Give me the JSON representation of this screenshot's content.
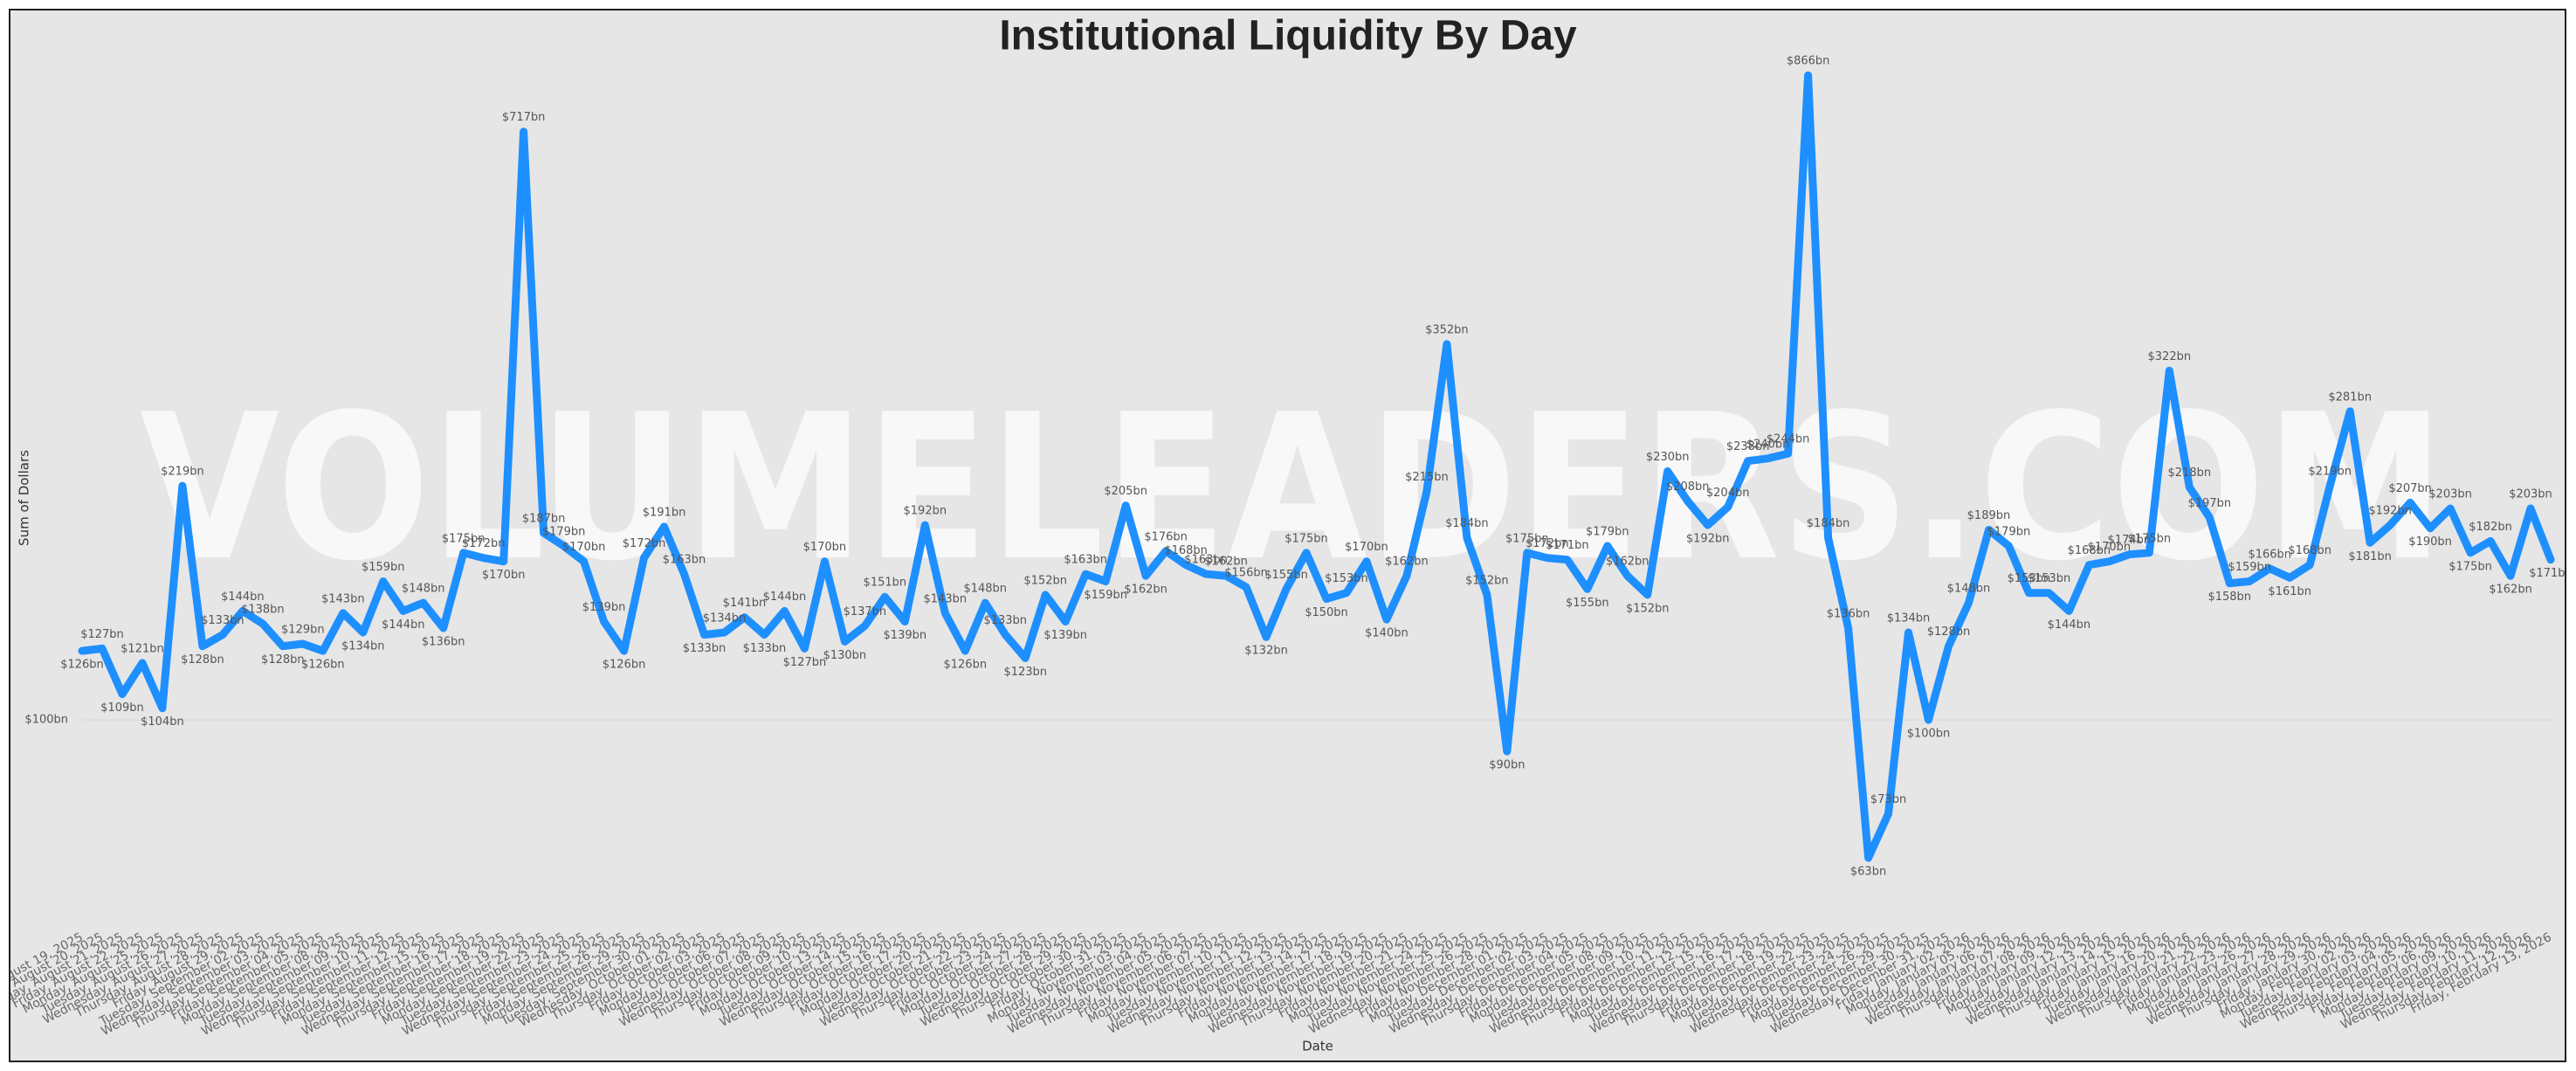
{
  "chart_data": {
    "type": "line",
    "title": "Institutional Liquidity By Day",
    "watermark": "VOLUMELEADERS.COM",
    "x_label": "Date",
    "y_label": "Sum of Dollars",
    "log_scale": true,
    "color": "#1e8fff",
    "ylim": [
      50,
      900
    ],
    "yticks": [
      {
        "value": 100,
        "label": "$100bn"
      }
    ],
    "grid": true,
    "categories": [
      "Tuesday, August 19, 2025",
      "Wednesday, August 20, 2025",
      "Thursday, August 21, 2025",
      "Friday, August 22, 2025",
      "Monday, August 25, 2025",
      "Tuesday, August 26, 2025",
      "Wednesday, August 27, 2025",
      "Thursday, August 28, 2025",
      "Friday, August 29, 2025",
      "Tuesday, September 02, 2025",
      "Wednesday, September 03, 2025",
      "Thursday, September 04, 2025",
      "Friday, September 05, 2025",
      "Monday, September 08, 2025",
      "Tuesday, September 09, 2025",
      "Wednesday, September 10, 2025",
      "Thursday, September 11, 2025",
      "Friday, September 12, 2025",
      "Monday, September 15, 2025",
      "Tuesday, September 16, 2025",
      "Wednesday, September 17, 2025",
      "Thursday, September 18, 2025",
      "Friday, September 19, 2025",
      "Monday, September 22, 2025",
      "Tuesday, September 23, 2025",
      "Wednesday, September 24, 2025",
      "Thursday, September 25, 2025",
      "Friday, September 26, 2025",
      "Monday, September 29, 2025",
      "Tuesday, September 30, 2025",
      "Wednesday, October 01, 2025",
      "Thursday, October 02, 2025",
      "Friday, October 03, 2025",
      "Monday, October 06, 2025",
      "Tuesday, October 07, 2025",
      "Wednesday, October 08, 2025",
      "Thursday, October 09, 2025",
      "Friday, October 10, 2025",
      "Monday, October 13, 2025",
      "Tuesday, October 14, 2025",
      "Wednesday, October 15, 2025",
      "Thursday, October 16, 2025",
      "Friday, October 17, 2025",
      "Monday, October 20, 2025",
      "Tuesday, October 21, 2025",
      "Wednesday, October 22, 2025",
      "Thursday, October 23, 2025",
      "Friday, October 24, 2025",
      "Monday, October 27, 2025",
      "Tuesday, October 28, 2025",
      "Wednesday, October 29, 2025",
      "Thursday, October 30, 2025",
      "Friday, October 31, 2025",
      "Monday, November 03, 2025",
      "Tuesday, November 04, 2025",
      "Wednesday, November 05, 2025",
      "Thursday, November 06, 2025",
      "Friday, November 07, 2025",
      "Monday, November 10, 2025",
      "Tuesday, November 11, 2025",
      "Wednesday, November 12, 2025",
      "Thursday, November 13, 2025",
      "Friday, November 14, 2025",
      "Monday, November 17, 2025",
      "Tuesday, November 18, 2025",
      "Wednesday, November 19, 2025",
      "Thursday, November 20, 2025",
      "Friday, November 21, 2025",
      "Monday, November 24, 2025",
      "Tuesday, November 25, 2025",
      "Wednesday, November 26, 2025",
      "Friday, November 28, 2025",
      "Monday, December 01, 2025",
      "Tuesday, December 02, 2025",
      "Wednesday, December 03, 2025",
      "Thursday, December 04, 2025",
      "Friday, December 05, 2025",
      "Monday, December 08, 2025",
      "Tuesday, December 09, 2025",
      "Wednesday, December 10, 2025",
      "Thursday, December 11, 2025",
      "Friday, December 12, 2025",
      "Monday, December 15, 2025",
      "Tuesday, December 16, 2025",
      "Wednesday, December 17, 2025",
      "Thursday, December 18, 2025",
      "Friday, December 19, 2025",
      "Monday, December 22, 2025",
      "Tuesday, December 23, 2025",
      "Wednesday, December 24, 2025",
      "Friday, December 26, 2025",
      "Monday, December 29, 2025",
      "Tuesday, December 30, 2025",
      "Wednesday, December 31, 2025",
      "Friday, January 02, 2026",
      "Monday, January 05, 2026",
      "Tuesday, January 06, 2026",
      "Wednesday, January 07, 2026",
      "Thursday, January 08, 2026",
      "Friday, January 09, 2026",
      "Monday, January 12, 2026",
      "Tuesday, January 13, 2026",
      "Wednesday, January 14, 2026",
      "Thursday, January 15, 2026",
      "Friday, January 16, 2026",
      "Tuesday, January 20, 2026",
      "Wednesday, January 21, 2026",
      "Thursday, January 22, 2026",
      "Friday, January 23, 2026",
      "Monday, January 26, 2026",
      "Tuesday, January 27, 2026",
      "Wednesday, January 28, 2026",
      "Thursday, January 29, 2026",
      "Friday, January 30, 2026",
      "Monday, February 02, 2026",
      "Tuesday, February 03, 2026",
      "Wednesday, February 04, 2026",
      "Thursday, February 05, 2026",
      "Friday, February 06, 2026",
      "Monday, February 09, 2026",
      "Tuesday, February 10, 2026",
      "Wednesday, February 11, 2026",
      "Thursday, February 12, 2026",
      "Friday, February 13, 2026"
    ],
    "values": [
      126,
      127,
      109,
      121,
      104,
      219,
      128,
      133,
      144,
      138,
      128,
      129,
      126,
      143,
      134,
      159,
      144,
      148,
      136,
      175,
      172,
      170,
      717,
      187,
      179,
      170,
      139,
      126,
      172,
      191,
      163,
      133,
      134,
      141,
      133,
      144,
      127,
      170,
      130,
      137,
      151,
      139,
      192,
      143,
      126,
      148,
      133,
      123,
      152,
      139,
      163,
      159,
      205,
      162,
      176,
      168,
      163,
      162,
      156,
      132,
      155,
      175,
      150,
      153,
      170,
      140,
      162,
      215,
      352,
      184,
      152,
      90,
      175,
      172,
      171,
      155,
      179,
      162,
      152,
      230,
      208,
      192,
      204,
      238,
      240,
      244,
      866,
      184,
      136,
      63,
      73,
      134,
      100,
      128,
      148,
      189,
      179,
      153,
      153,
      144,
      168,
      170,
      174,
      175,
      322,
      218,
      197,
      158,
      159,
      166,
      161,
      168,
      219,
      281,
      181,
      192,
      207,
      190,
      203,
      175,
      182,
      162,
      203,
      171
    ],
    "value_labels": [
      "$126bn",
      "$127bn",
      "$109bn",
      "$121bn",
      "$104bn",
      "$219bn",
      "$128bn",
      "$133bn",
      "$144bn",
      "$138bn",
      "$128bn",
      "$129bn",
      "$126bn",
      "$143bn",
      "$134bn",
      "$159bn",
      "$144bn",
      "$148bn",
      "$136bn",
      "$175bn",
      "$172bn",
      "$170bn",
      "$717bn",
      "$187bn",
      "$179bn",
      "$170bn",
      "$139bn",
      "$126bn",
      "$172bn",
      "$191bn",
      "$163bn",
      "$133bn",
      "$134bn",
      "$141bn",
      "$133bn",
      "$144bn",
      "$127bn",
      "$170bn",
      "$130bn",
      "$137bn",
      "$151bn",
      "$139bn",
      "$192bn",
      "$143bn",
      "$126bn",
      "$148bn",
      "$133bn",
      "$123bn",
      "$152bn",
      "$139bn",
      "$163bn",
      "$159bn",
      "$205bn",
      "$162bn",
      "$176bn",
      "$168bn",
      "$163bn",
      "$162bn",
      "$156bn",
      "$132bn",
      "$155bn",
      "$175bn",
      "$150bn",
      "$153bn",
      "$170bn",
      "$140bn",
      "$162bn",
      "$215bn",
      "$352bn",
      "$184bn",
      "$152bn",
      "$90bn",
      "$175bn",
      "$172bn",
      "$171bn",
      "$155bn",
      "$179bn",
      "$162bn",
      "$152bn",
      "$230bn",
      "$208bn",
      "$192bn",
      "$204bn",
      "$238bn",
      "$240bn",
      "$244bn",
      "$866bn",
      "$184bn",
      "$136bn",
      "$63bn",
      "$73bn",
      "$134bn",
      "$100bn",
      "$128bn",
      "$148bn",
      "$189bn",
      "$179bn",
      "$153bn",
      "$153bn",
      "$144bn",
      "$168bn",
      "$170bn",
      "$174bn",
      "$175bn",
      "$322bn",
      "$218bn",
      "$197bn",
      "$158bn",
      "$159bn",
      "$166bn",
      "$161bn",
      "$168bn",
      "$219bn",
      "$281bn",
      "$181bn",
      "$192bn",
      "$207bn",
      "$190bn",
      "$203bn",
      "$175bn",
      "$182bn",
      "$162bn",
      "$203bn",
      "$171bn"
    ]
  }
}
